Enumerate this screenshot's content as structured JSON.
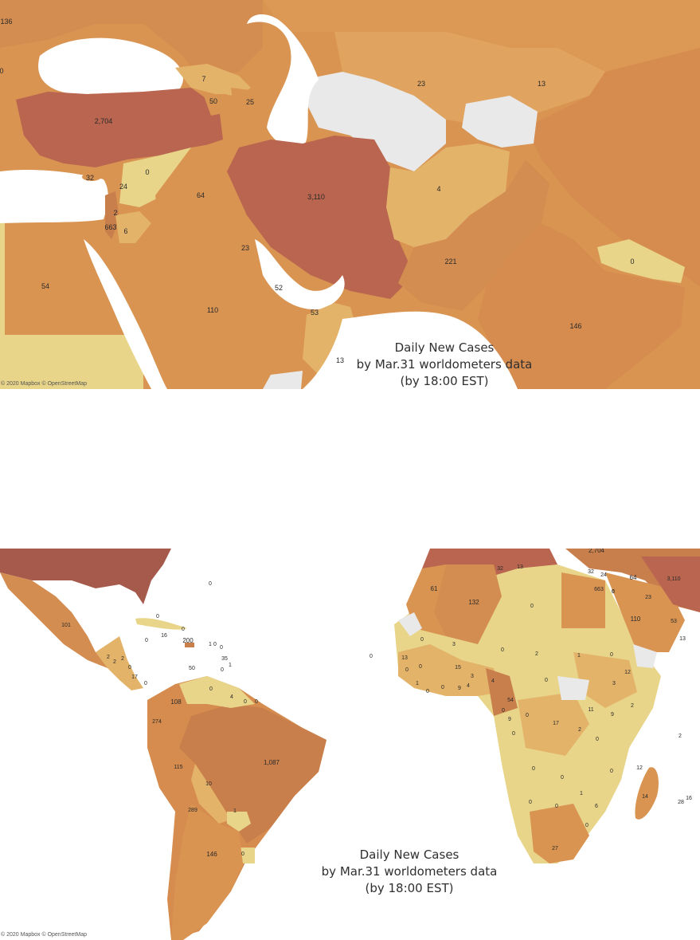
{
  "palette": {
    "very_low": "#e8d58a",
    "low": "#e4b36a",
    "mid": "#d99452",
    "high": "#c87f4b",
    "very_high": "#b9654f",
    "darkest": "#a65a4c",
    "no_data": "#e9e9e9",
    "water": "#ffffff"
  },
  "top_map": {
    "caption": {
      "line1": "Daily New Cases",
      "line2": "by Mar.31 worldometers data",
      "line3": "(by 18:00 EST)"
    },
    "attribution": "© 2020 Mapbox © OpenStreetMap",
    "labels": [
      {
        "id": "c136",
        "text": "136"
      },
      {
        "id": "c0a",
        "text": "0"
      },
      {
        "id": "c7",
        "text": "7"
      },
      {
        "id": "c50",
        "text": "50"
      },
      {
        "id": "c25",
        "text": "25"
      },
      {
        "id": "c23a",
        "text": "23"
      },
      {
        "id": "c13a",
        "text": "13"
      },
      {
        "id": "c2704",
        "text": "2,704"
      },
      {
        "id": "c32",
        "text": "32"
      },
      {
        "id": "c0b",
        "text": "0"
      },
      {
        "id": "c24",
        "text": "24"
      },
      {
        "id": "c64",
        "text": "64"
      },
      {
        "id": "c3110",
        "text": "3,110"
      },
      {
        "id": "c4",
        "text": "4"
      },
      {
        "id": "c2",
        "text": "2"
      },
      {
        "id": "c663",
        "text": "663"
      },
      {
        "id": "c6",
        "text": "6"
      },
      {
        "id": "c221",
        "text": "221"
      },
      {
        "id": "c0c",
        "text": "0"
      },
      {
        "id": "c23b",
        "text": "23"
      },
      {
        "id": "c54",
        "text": "54"
      },
      {
        "id": "c52",
        "text": "52"
      },
      {
        "id": "c110",
        "text": "110"
      },
      {
        "id": "c53",
        "text": "53"
      },
      {
        "id": "c146",
        "text": "146"
      },
      {
        "id": "c13b",
        "text": "13"
      }
    ]
  },
  "bottom_map": {
    "caption": {
      "line1": "Daily New Cases",
      "line2": "by Mar.31 worldometers data",
      "line3": "(by 18:00 EST)"
    },
    "attribution": "© 2020 Mapbox © OpenStreetMap",
    "labels": [
      {
        "id": "b2704",
        "text": "2,704"
      },
      {
        "id": "b3110",
        "text": "3,110"
      },
      {
        "id": "b32a",
        "text": "32"
      },
      {
        "id": "b13a",
        "text": "13"
      },
      {
        "id": "b32b",
        "text": "32"
      },
      {
        "id": "b24",
        "text": "24"
      },
      {
        "id": "b64",
        "text": "64"
      },
      {
        "id": "b663",
        "text": "663"
      },
      {
        "id": "b6a",
        "text": "6"
      },
      {
        "id": "b61",
        "text": "61"
      },
      {
        "id": "b132",
        "text": "132"
      },
      {
        "id": "b23",
        "text": "23"
      },
      {
        "id": "b110",
        "text": "110"
      },
      {
        "id": "b53",
        "text": "53"
      },
      {
        "id": "b13b",
        "text": "13"
      },
      {
        "id": "b101",
        "text": "101"
      },
      {
        "id": "b0_1",
        "text": "0"
      },
      {
        "id": "b0_2",
        "text": "0"
      },
      {
        "id": "b0_3",
        "text": "0"
      },
      {
        "id": "b16",
        "text": "16"
      },
      {
        "id": "b0_4",
        "text": "0"
      },
      {
        "id": "b200",
        "text": "200"
      },
      {
        "id": "b1a",
        "text": "1"
      },
      {
        "id": "b0_5",
        "text": "0"
      },
      {
        "id": "b0_6",
        "text": "0"
      },
      {
        "id": "b35",
        "text": "35"
      },
      {
        "id": "b1b",
        "text": "1"
      },
      {
        "id": "b5",
        "text": "5"
      },
      {
        "id": "b0_7",
        "text": "0"
      },
      {
        "id": "b0_8",
        "text": "0"
      },
      {
        "id": "b2a",
        "text": "2"
      },
      {
        "id": "b2b",
        "text": "2"
      },
      {
        "id": "b2c",
        "text": "2"
      },
      {
        "id": "b0_9",
        "text": "0"
      },
      {
        "id": "b17a",
        "text": "17"
      },
      {
        "id": "b0_10",
        "text": "0"
      },
      {
        "id": "b0_11",
        "text": "0"
      },
      {
        "id": "b108",
        "text": "108"
      },
      {
        "id": "b0_12",
        "text": "0"
      },
      {
        "id": "b4a",
        "text": "4"
      },
      {
        "id": "b0_13",
        "text": "0"
      },
      {
        "id": "b0_14",
        "text": "0"
      },
      {
        "id": "b274",
        "text": "274"
      },
      {
        "id": "b1087",
        "text": "1,087"
      },
      {
        "id": "b115",
        "text": "115"
      },
      {
        "id": "b10",
        "text": "10"
      },
      {
        "id": "b289",
        "text": "289"
      },
      {
        "id": "b1c",
        "text": "1"
      },
      {
        "id": "b146",
        "text": "146"
      },
      {
        "id": "b0_15",
        "text": "0"
      },
      {
        "id": "b0_16",
        "text": "0"
      },
      {
        "id": "b0_17",
        "text": "0"
      },
      {
        "id": "b3a",
        "text": "3"
      },
      {
        "id": "b0_18",
        "text": "0"
      },
      {
        "id": "b13c",
        "text": "13"
      },
      {
        "id": "b0_19",
        "text": "0"
      },
      {
        "id": "b0_20",
        "text": "0"
      },
      {
        "id": "b1d",
        "text": "1"
      },
      {
        "id": "b0_21",
        "text": "0"
      },
      {
        "id": "b0_22",
        "text": "0"
      },
      {
        "id": "b15",
        "text": "15"
      },
      {
        "id": "b3b",
        "text": "3"
      },
      {
        "id": "b9a",
        "text": "9"
      },
      {
        "id": "b4b",
        "text": "4"
      },
      {
        "id": "b4c",
        "text": "4"
      },
      {
        "id": "b2d",
        "text": "2"
      },
      {
        "id": "b1e",
        "text": "1"
      },
      {
        "id": "b0_23",
        "text": "0"
      },
      {
        "id": "b54",
        "text": "54"
      },
      {
        "id": "b0_24",
        "text": "0"
      },
      {
        "id": "b0_25",
        "text": "0"
      },
      {
        "id": "b12a",
        "text": "12"
      },
      {
        "id": "b3c",
        "text": "3"
      },
      {
        "id": "b0_26",
        "text": "0"
      },
      {
        "id": "b0_27",
        "text": "0"
      },
      {
        "id": "b9b",
        "text": "9"
      },
      {
        "id": "b0_28",
        "text": "0"
      },
      {
        "id": "b11",
        "text": "11"
      },
      {
        "id": "b2e",
        "text": "2"
      },
      {
        "id": "b9c",
        "text": "9"
      },
      {
        "id": "b17b",
        "text": "17"
      },
      {
        "id": "b2f",
        "text": "2"
      },
      {
        "id": "b0_29",
        "text": "0"
      },
      {
        "id": "b2g",
        "text": "2"
      },
      {
        "id": "b0_30",
        "text": "0"
      },
      {
        "id": "b0_31",
        "text": "0"
      },
      {
        "id": "b0_32",
        "text": "0"
      },
      {
        "id": "b12b",
        "text": "12"
      },
      {
        "id": "b1f",
        "text": "1"
      },
      {
        "id": "b0_33",
        "text": "0"
      },
      {
        "id": "b0_34",
        "text": "0"
      },
      {
        "id": "b14",
        "text": "14"
      },
      {
        "id": "b28",
        "text": "28"
      },
      {
        "id": "b16b",
        "text": "16"
      },
      {
        "id": "b0_35",
        "text": "0"
      },
      {
        "id": "b27",
        "text": "27"
      },
      {
        "id": "b6b",
        "text": "6"
      }
    ]
  }
}
